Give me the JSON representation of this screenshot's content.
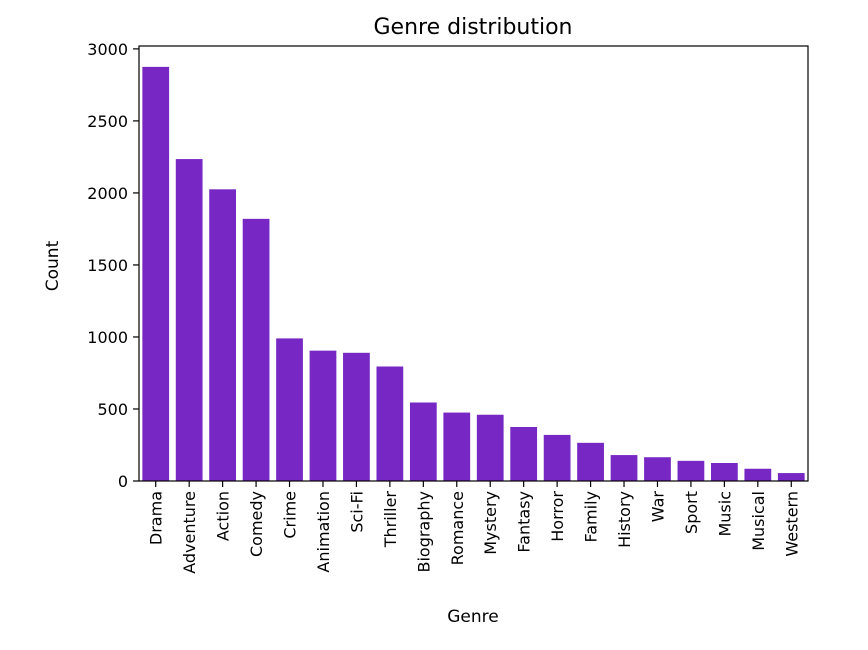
{
  "chart_data": {
    "type": "bar",
    "title": "Genre distribution",
    "xlabel": "Genre",
    "ylabel": "Count",
    "categories": [
      "Drama",
      "Adventure",
      "Action",
      "Comedy",
      "Crime",
      "Animation",
      "Sci-Fi",
      "Thriller",
      "Biography",
      "Romance",
      "Mystery",
      "Fantasy",
      "Horror",
      "Family",
      "History",
      "War",
      "Sport",
      "Music",
      "Musical",
      "Western"
    ],
    "values": [
      2875,
      2235,
      2025,
      1820,
      990,
      905,
      890,
      795,
      545,
      475,
      460,
      375,
      320,
      265,
      180,
      165,
      140,
      125,
      85,
      55
    ],
    "ylim": [
      0,
      3020
    ],
    "yticks": [
      0,
      500,
      1000,
      1500,
      2000,
      2500,
      3000
    ],
    "bar_color": "#7728c4",
    "grid": false,
    "legend": "none"
  }
}
